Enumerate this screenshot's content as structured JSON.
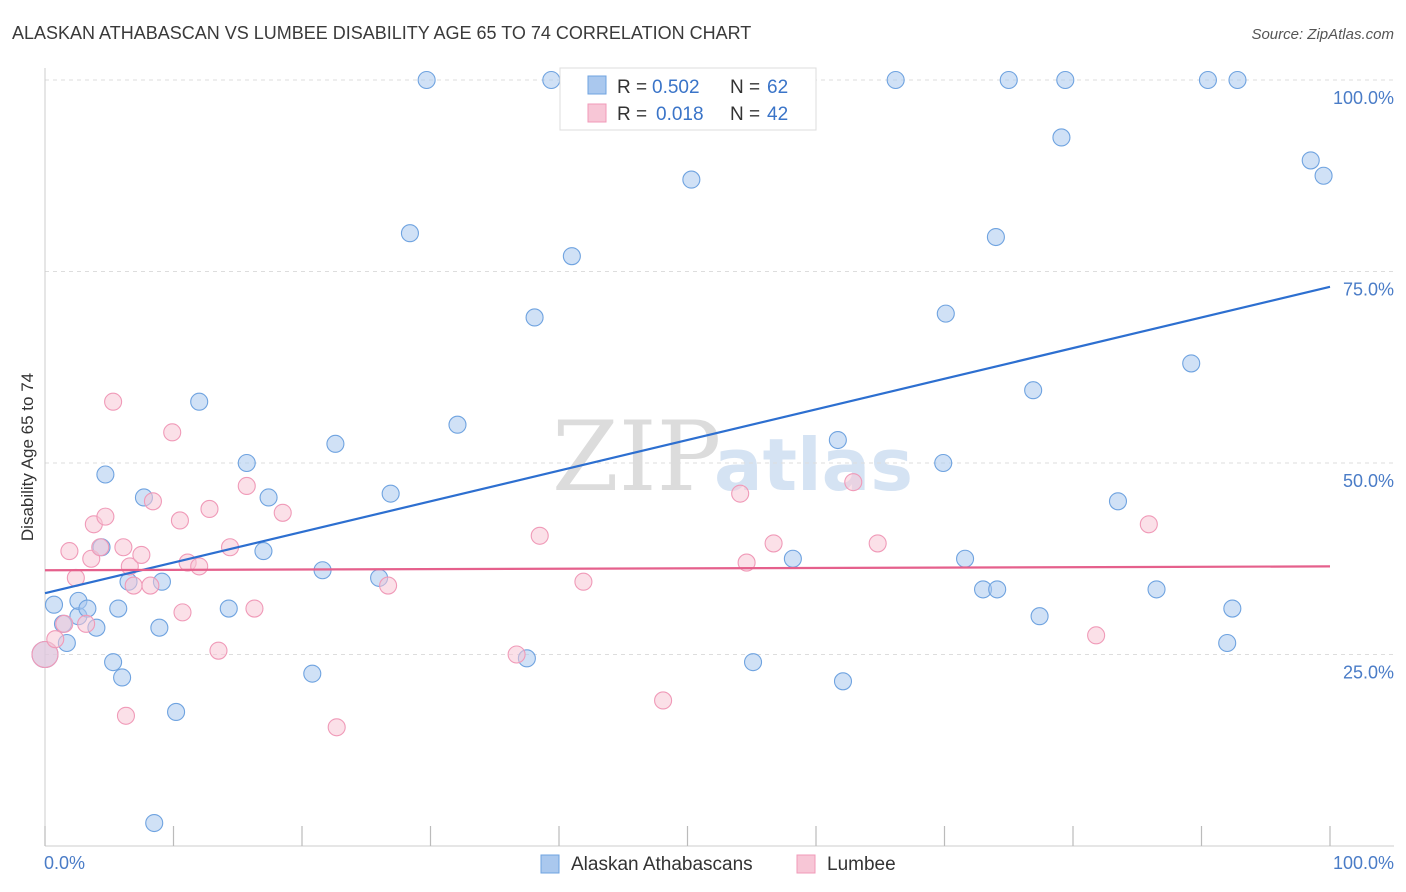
{
  "colors": {
    "blue": "#6fa3e0",
    "blue_fill": "#aac8ee",
    "blue_line": "#2d6fd0",
    "pink": "#f09ab8",
    "pink_fill": "#f7c6d6",
    "pink_line": "#e5608c",
    "grid": "#dddddd"
  },
  "chart_data": {
    "type": "scatter",
    "title": "ALASKAN ATHABASCAN VS LUMBEE DISABILITY AGE 65 TO 74 CORRELATION CHART",
    "source": "Source: ZipAtlas.com",
    "xlabel": "",
    "ylabel": "Disability Age 65 to 74",
    "xlim": [
      0,
      100
    ],
    "ylim": [
      0,
      100
    ],
    "x_tick_labels": {
      "left": "0.0%",
      "right": "100.0%"
    },
    "y_tick_labels": [
      {
        "value": 100,
        "label": "100.0%"
      },
      {
        "value": 75,
        "label": "75.0%"
      },
      {
        "value": 50,
        "label": "50.0%"
      },
      {
        "value": 25,
        "label": "25.0%"
      }
    ],
    "legend": {
      "items": [
        {
          "series": "Alaskan Athabascans",
          "r_label": "R =",
          "r_value": "0.502",
          "n_label": "N =",
          "n_value": "62"
        },
        {
          "series": "Lumbee",
          "r_label": "R =",
          "r_value": "0.018",
          "n_label": "N =",
          "n_value": "42"
        }
      ]
    },
    "watermark": {
      "part1": "ZIP",
      "part2": "atlas"
    },
    "series": [
      {
        "name": "Alaskan Athabascans",
        "color": "blue",
        "trend": {
          "x0": 0,
          "y0": 33,
          "x1": 100,
          "y1": 73
        },
        "points": [
          [
            0,
            25
          ],
          [
            0.7,
            31.5
          ],
          [
            1.4,
            29
          ],
          [
            1.7,
            26.5
          ],
          [
            2.6,
            30
          ],
          [
            2.6,
            32
          ],
          [
            3.3,
            31
          ],
          [
            4.0,
            28.5
          ],
          [
            4.4,
            39
          ],
          [
            4.7,
            48.5
          ],
          [
            5.3,
            24
          ],
          [
            5.7,
            31
          ],
          [
            6.0,
            22
          ],
          [
            6.5,
            34.5
          ],
          [
            7.7,
            45.5
          ],
          [
            8.5,
            3
          ],
          [
            8.9,
            28.5
          ],
          [
            9.1,
            34.5
          ],
          [
            10.2,
            17.5
          ],
          [
            12.0,
            58
          ],
          [
            14.3,
            31
          ],
          [
            15.7,
            50
          ],
          [
            17.0,
            38.5
          ],
          [
            17.4,
            45.5
          ],
          [
            20.8,
            22.5
          ],
          [
            21.6,
            36
          ],
          [
            22.6,
            52.5
          ],
          [
            26.0,
            35
          ],
          [
            26.9,
            46
          ],
          [
            28.4,
            80
          ],
          [
            29.7,
            100
          ],
          [
            32.1,
            55
          ],
          [
            37.5,
            24.5
          ],
          [
            38.1,
            69
          ],
          [
            39.4,
            100
          ],
          [
            41.0,
            77
          ],
          [
            50.3,
            87
          ],
          [
            55.1,
            24
          ],
          [
            58.2,
            37.5
          ],
          [
            61.7,
            53
          ],
          [
            62.1,
            21.5
          ],
          [
            66.2,
            100
          ],
          [
            69.9,
            50
          ],
          [
            70.1,
            69.5
          ],
          [
            71.6,
            37.5
          ],
          [
            73.0,
            33.5
          ],
          [
            74.1,
            33.5
          ],
          [
            74.0,
            79.5
          ],
          [
            75.0,
            100
          ],
          [
            76.9,
            59.5
          ],
          [
            77.4,
            30
          ],
          [
            79.1,
            92.5
          ],
          [
            79.4,
            100
          ],
          [
            83.5,
            45
          ],
          [
            86.5,
            33.5
          ],
          [
            89.2,
            63
          ],
          [
            90.5,
            100
          ],
          [
            92.0,
            26.5
          ],
          [
            92.4,
            31
          ],
          [
            92.8,
            100
          ],
          [
            98.5,
            89.5
          ],
          [
            99.5,
            87.5
          ]
        ]
      },
      {
        "name": "Lumbee",
        "color": "pink",
        "trend": {
          "x0": 0,
          "y0": 36,
          "x1": 100,
          "y1": 36.5
        },
        "points": [
          [
            0,
            25
          ],
          [
            0.8,
            27
          ],
          [
            1.5,
            29
          ],
          [
            1.9,
            38.5
          ],
          [
            2.4,
            35
          ],
          [
            3.2,
            29
          ],
          [
            3.6,
            37.5
          ],
          [
            3.8,
            42
          ],
          [
            4.3,
            39
          ],
          [
            4.7,
            43
          ],
          [
            5.3,
            58
          ],
          [
            6.1,
            39
          ],
          [
            6.3,
            17
          ],
          [
            6.6,
            36.5
          ],
          [
            6.9,
            34
          ],
          [
            7.5,
            38
          ],
          [
            8.2,
            34
          ],
          [
            8.4,
            45
          ],
          [
            9.9,
            54
          ],
          [
            10.5,
            42.5
          ],
          [
            10.7,
            30.5
          ],
          [
            11.1,
            37
          ],
          [
            12.0,
            36.5
          ],
          [
            12.8,
            44
          ],
          [
            13.5,
            25.5
          ],
          [
            14.4,
            39
          ],
          [
            15.7,
            47
          ],
          [
            16.3,
            31
          ],
          [
            18.5,
            43.5
          ],
          [
            22.7,
            15.5
          ],
          [
            26.7,
            34
          ],
          [
            36.7,
            25
          ],
          [
            38.5,
            40.5
          ],
          [
            41.9,
            34.5
          ],
          [
            48.1,
            19
          ],
          [
            54.1,
            46
          ],
          [
            54.6,
            37
          ],
          [
            56.7,
            39.5
          ],
          [
            62.9,
            47.5
          ],
          [
            64.8,
            39.5
          ],
          [
            81.8,
            27.5
          ],
          [
            85.9,
            42
          ]
        ]
      }
    ]
  }
}
